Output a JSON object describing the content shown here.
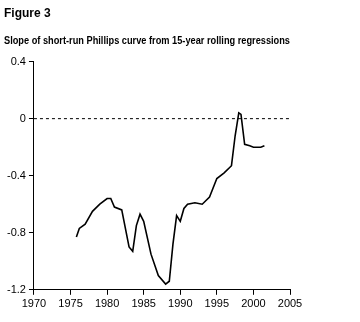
{
  "chart_data": {
    "type": "line",
    "title": "Figure 3",
    "subtitle": "Slope of short-run Phillips curve from 15-year rolling regressions",
    "x": [
      1975.8,
      1976.2,
      1977,
      1978,
      1979,
      1980,
      1980.5,
      1981,
      1982,
      1983,
      1983.5,
      1984,
      1984.5,
      1985,
      1986,
      1987,
      1988,
      1988.5,
      1989,
      1989.5,
      1990,
      1990.5,
      1991,
      1992,
      1993,
      1994,
      1995,
      1996,
      1997,
      1997.5,
      1998,
      1998.3,
      1998.8,
      1999.5,
      2000,
      2001,
      2001.5
    ],
    "values": [
      -0.83,
      -0.77,
      -0.74,
      -0.65,
      -0.6,
      -0.56,
      -0.56,
      -0.62,
      -0.64,
      -0.9,
      -0.93,
      -0.75,
      -0.67,
      -0.72,
      -0.95,
      -1.1,
      -1.16,
      -1.14,
      -0.88,
      -0.68,
      -0.72,
      -0.63,
      -0.6,
      -0.59,
      -0.6,
      -0.55,
      -0.42,
      -0.38,
      -0.33,
      -0.12,
      0.04,
      0.03,
      -0.18,
      -0.19,
      -0.2,
      -0.2,
      -0.19
    ],
    "color": "#000000",
    "xlim": [
      1970,
      2005
    ],
    "xticks": [
      1970,
      1975,
      1980,
      1985,
      1990,
      1995,
      2000,
      2005
    ],
    "ylim": [
      -1.2,
      0.4
    ],
    "yticks": [
      -1.2,
      -0.8,
      -0.4,
      0,
      0.4
    ],
    "hline": 0,
    "hline_style": "dashed",
    "grid": false
  }
}
